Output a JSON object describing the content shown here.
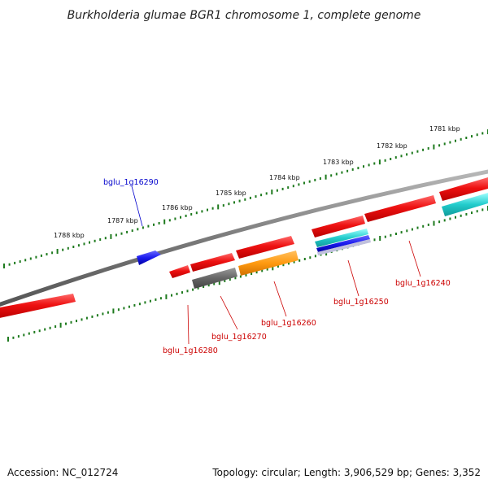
{
  "title": "Burkholderia glumae BGR1 chromosome 1, complete genome",
  "footer": {
    "accession": "Accession: NC_012724",
    "topology": "Topology: circular; Length: 3,906,529 bp; Genes: 3,352"
  },
  "colors": {
    "backbone": "#8a8a8a",
    "tick": "#1e7a1e",
    "forward_gene": "#ee1111",
    "blue_gene": "#1a1aee",
    "orange_gene": "#ff9a10",
    "gray_gene": "#666666",
    "cyan_gene": "#22cccc",
    "label_red": "#cc0000",
    "label_blue": "#0000cc"
  },
  "scale_labels": [
    "1788 kbp",
    "1787 kbp",
    "1786 kbp",
    "1785 kbp",
    "1784 kbp",
    "1783 kbp",
    "1782 kbp",
    "1781 kbp"
  ],
  "gene_labels": [
    {
      "text": "bglu_1g16290",
      "color": "blue"
    },
    {
      "text": "bglu_1g16280",
      "color": "red"
    },
    {
      "text": "bglu_1g16270",
      "color": "red"
    },
    {
      "text": "bglu_1g16260",
      "color": "red"
    },
    {
      "text": "bglu_1g16250",
      "color": "red"
    },
    {
      "text": "bglu_1g16240",
      "color": "red"
    }
  ]
}
